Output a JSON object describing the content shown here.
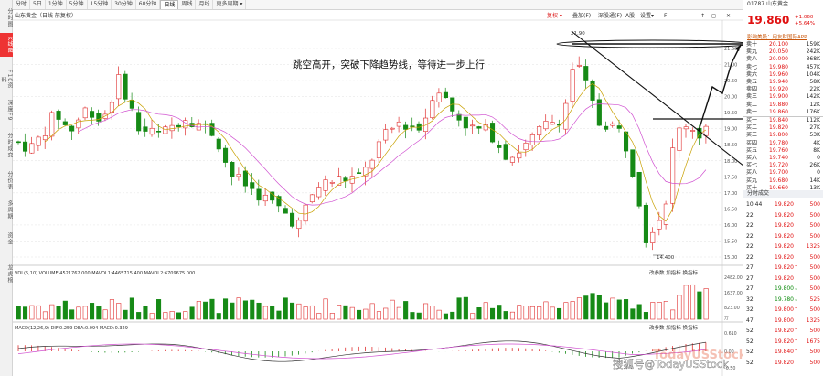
{
  "sidebar": {
    "tabs": [
      "分时图",
      "K线图",
      "F10资料",
      "深度F9",
      "分时成交",
      "分价表",
      "多周期",
      "资金",
      "龙虎榜"
    ]
  },
  "top_bar": {
    "tabs": [
      "分时",
      "5日",
      "1分钟",
      "5分钟",
      "15分钟",
      "30分钟",
      "60分钟",
      "日线",
      "周线",
      "月线",
      "更多周期 ▾"
    ],
    "active_index": 7
  },
  "chart": {
    "header_title": "山东黄金（日线 前复权）",
    "toolbar": [
      "复权 ▾",
      "叠加(F)",
      "深股通(F)",
      "A股",
      "设置▾",
      "F",
      "↑",
      "◻",
      "✕"
    ],
    "annotation": "跳空高开，突破下降趋势线，等待进一步上行",
    "high_label": "21.90",
    "low_label": "14.400",
    "price_ticks": [
      "21.50",
      "21.00",
      "20.50",
      "20.00",
      "19.50",
      "19.00",
      "18.50",
      "18.00",
      "17.50",
      "17.00",
      "16.50",
      "16.00",
      "15.50",
      "15.00"
    ],
    "vol_header": "VOL(5,10)  VOLUME:4521762.000  MAVOL1:4465715.400  MAVOL2:6709675.000",
    "vol_ticks": [
      "2482.00",
      "1637.00",
      "823.00",
      "万"
    ],
    "vol_tools": "改参数  加指标  换指标",
    "macd_header": "MACD(12,26,9)  DIF:0.259  DEA:0.094  MACD:0.329",
    "macd_ticks": [
      "0.610",
      "0.00",
      "-0.50"
    ],
    "macd_tools": "改参数  加指标  换指标",
    "watermark": "TodayUSStock",
    "footer_credit": "搜狐号@TodayUSStock"
  },
  "quote": {
    "code": "01787 山东黄金",
    "price": "19.860",
    "change": "+1.060",
    "change_pct": "+5.64%",
    "ad_text": "影响美股：用友财国际APP",
    "asks": [
      {
        "label": "卖十",
        "price": "20.100",
        "vol": "159K"
      },
      {
        "label": "卖九",
        "price": "20.050",
        "vol": "242K"
      },
      {
        "label": "卖八",
        "price": "20.000",
        "vol": "368K"
      },
      {
        "label": "卖七",
        "price": "19.980",
        "vol": "457K"
      },
      {
        "label": "卖六",
        "price": "19.960",
        "vol": "104K"
      },
      {
        "label": "卖五",
        "price": "19.940",
        "vol": "58K"
      },
      {
        "label": "卖四",
        "price": "19.920",
        "vol": "22K"
      },
      {
        "label": "卖三",
        "price": "19.900",
        "vol": "142K"
      },
      {
        "label": "卖二",
        "price": "19.880",
        "vol": "12K"
      },
      {
        "label": "卖一",
        "price": "19.860",
        "vol": "176K"
      }
    ],
    "bids": [
      {
        "label": "买一",
        "price": "19.840",
        "vol": "112K"
      },
      {
        "label": "买二",
        "price": "19.820",
        "vol": "27K"
      },
      {
        "label": "买三",
        "price": "19.800",
        "vol": "53K"
      },
      {
        "label": "买四",
        "price": "19.780",
        "vol": "4K"
      },
      {
        "label": "买五",
        "price": "19.760",
        "vol": "8K"
      },
      {
        "label": "买六",
        "price": "19.740",
        "vol": "0"
      },
      {
        "label": "买七",
        "price": "19.720",
        "vol": "26K"
      },
      {
        "label": "买八",
        "price": "19.700",
        "vol": "0"
      },
      {
        "label": "买九",
        "price": "19.680",
        "vol": "14K"
      },
      {
        "label": "买十",
        "price": "19.660",
        "vol": "13K"
      }
    ],
    "trades_title": "分时成交",
    "trades": [
      {
        "time": "10:44",
        "price": "19.820",
        "vol": "500"
      },
      {
        "time": "22",
        "price": "19.820",
        "vol": "500"
      },
      {
        "time": "22",
        "price": "19.820",
        "vol": "500"
      },
      {
        "time": "22",
        "price": "19.820",
        "vol": "500"
      },
      {
        "time": "22",
        "price": "19.820",
        "vol": "1325"
      },
      {
        "time": "22",
        "price": "19.820",
        "vol": "500"
      },
      {
        "time": "27",
        "price": "19.820↑",
        "vol": "500"
      },
      {
        "time": "27",
        "price": "19.820",
        "vol": "500"
      },
      {
        "time": "27",
        "price": "19.800↓",
        "vol": "500"
      },
      {
        "time": "32",
        "price": "19.780↓",
        "vol": "525"
      },
      {
        "time": "32",
        "price": "19.800↑",
        "vol": "500"
      },
      {
        "time": "47",
        "price": "19.800",
        "vol": "1325"
      },
      {
        "time": "52",
        "price": "19.820↑",
        "vol": "500"
      },
      {
        "time": "52",
        "price": "19.820↑",
        "vol": "1675"
      },
      {
        "time": "52",
        "price": "19.840↑",
        "vol": "500"
      },
      {
        "time": "52",
        "price": "19.820",
        "vol": "500"
      }
    ]
  }
}
